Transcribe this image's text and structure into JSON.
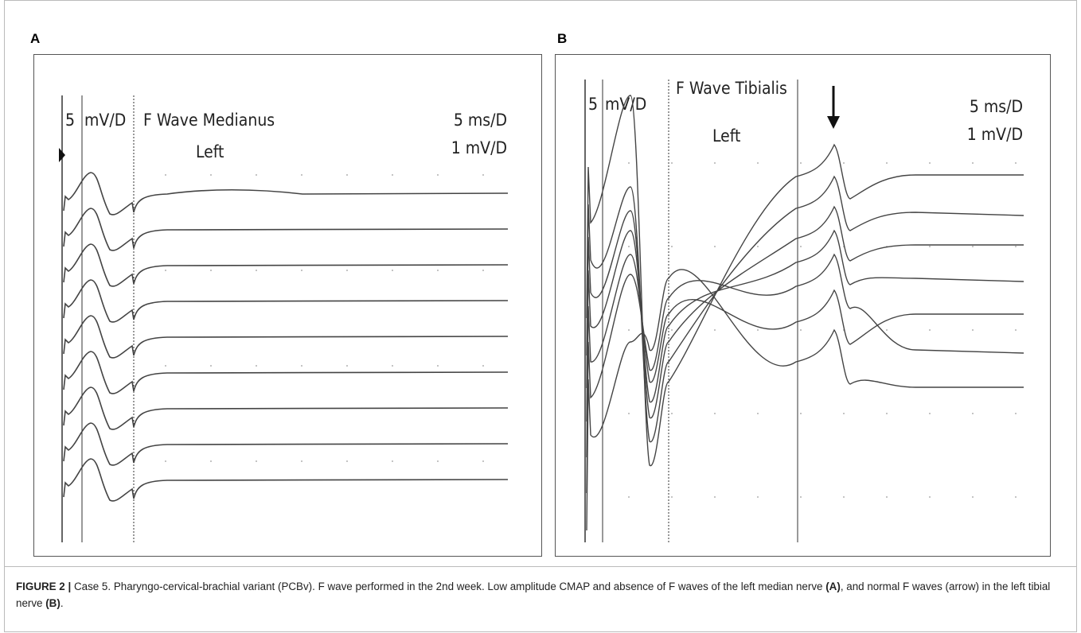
{
  "panels": [
    {
      "label": "A",
      "texts": [
        "5",
        "mV/D",
        "F Wave Medianus",
        "Left",
        "5 ms/D",
        "1 mV/D"
      ]
    },
    {
      "label": "B",
      "texts": [
        "5",
        "mV/D",
        "F Wave Tibialis",
        "Left",
        "5 ms/D",
        "1 mV/D"
      ]
    }
  ],
  "caption": [
    "FIGURE 2 |",
    " Case 5. Pharyngo-cervical-brachial variant (PCBv). F wave performed in the 2nd week. Low amplitude CMAP and absence of F waves of the left median nerve ",
    "(A)",
    ", and normal F waves (arrow) in the left tibial nerve ",
    "(B)",
    "."
  ]
}
